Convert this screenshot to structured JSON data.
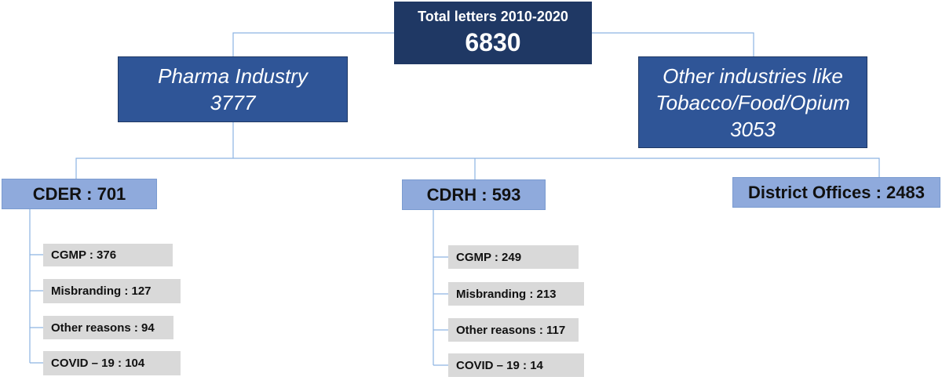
{
  "root": {
    "lines": [
      "Total letters 2010-2020",
      "6830"
    ]
  },
  "pharma": {
    "lines": [
      "Pharma Industry",
      "3777"
    ]
  },
  "other": {
    "lines": [
      "Other industries like",
      "Tobacco/Food/Opium",
      "3053"
    ]
  },
  "cder": {
    "label": "CDER : 701",
    "children": [
      "CGMP : 376",
      "Misbranding : 127",
      "Other reasons : 94",
      "COVID – 19 : 104"
    ]
  },
  "cdrh": {
    "label": "CDRH : 593",
    "children": [
      "CGMP : 249",
      "Misbranding : 213",
      "Other reasons : 117",
      "COVID – 19 : 14"
    ]
  },
  "district": {
    "label": "District Offices : 2483"
  }
}
